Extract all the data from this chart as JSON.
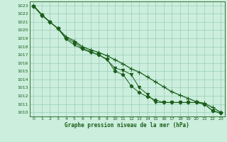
{
  "title": "Graphe pression niveau de la mer (hPa)",
  "xlim": [
    -0.5,
    23.5
  ],
  "ylim": [
    1009.5,
    1023.5
  ],
  "yticks": [
    1010,
    1011,
    1012,
    1013,
    1014,
    1015,
    1016,
    1017,
    1018,
    1019,
    1020,
    1021,
    1022,
    1023
  ],
  "xticks": [
    0,
    1,
    2,
    3,
    4,
    5,
    6,
    7,
    8,
    9,
    10,
    11,
    12,
    13,
    14,
    15,
    16,
    17,
    18,
    19,
    20,
    21,
    22,
    23
  ],
  "bg_color": "#cceedd",
  "grid_color": "#99ccbb",
  "line_color": "#1a5e1a",
  "series": [
    [
      1023.0,
      1021.9,
      1021.0,
      1020.2,
      1019.2,
      1018.7,
      1018.0,
      1017.6,
      1017.3,
      1016.9,
      1016.4,
      1015.9,
      1015.3,
      1014.9,
      1014.3,
      1013.7,
      1013.1,
      1012.5,
      1012.1,
      1011.7,
      1011.3,
      1011.1,
      1010.6,
      1010.0
    ],
    [
      1022.9,
      1021.8,
      1021.0,
      1020.2,
      1019.0,
      1018.5,
      1017.8,
      1017.4,
      1017.0,
      1016.5,
      1015.0,
      1014.6,
      1013.2,
      1012.4,
      1011.9,
      1011.5,
      1011.2,
      1011.2,
      1011.2,
      1011.2,
      1011.2,
      1011.0,
      1010.2,
      1009.9
    ],
    [
      1022.9,
      1021.9,
      1021.0,
      1020.2,
      1018.9,
      1018.2,
      1017.7,
      1017.3,
      1017.0,
      1016.4,
      1015.4,
      1015.1,
      1014.6,
      1013.0,
      1012.2,
      1011.2,
      1011.2,
      1011.2,
      1011.2,
      1011.2,
      1011.2,
      1011.0,
      1010.2,
      1009.9
    ]
  ],
  "markers": [
    "+",
    "D",
    "v"
  ],
  "markersizes": [
    4,
    2.5,
    3
  ],
  "linewidths": [
    0.9,
    0.7,
    0.7
  ]
}
